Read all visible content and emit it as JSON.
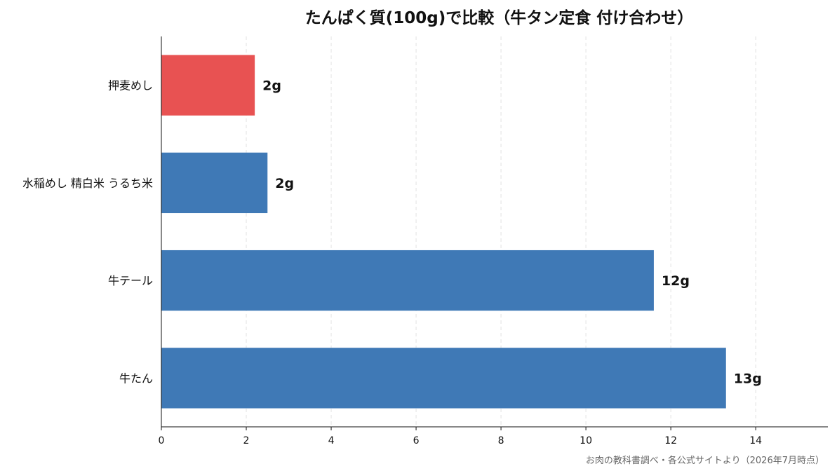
{
  "chart_data": {
    "type": "bar",
    "orientation": "horizontal",
    "title": "たんぱく質(100g)で比較（牛タン定食 付け合わせ）",
    "categories": [
      "押麦めし",
      "水稲めし 精白米 うるち米",
      "牛テール",
      "牛たん"
    ],
    "values": [
      2.2,
      2.5,
      11.6,
      13.3
    ],
    "value_labels": [
      "2g",
      "2g",
      "12g",
      "13g"
    ],
    "bar_colors": [
      "#e85252",
      "#3f79b6",
      "#3f79b6",
      "#3f79b6"
    ],
    "xlim": [
      0,
      15.7
    ],
    "xticks": [
      0,
      2,
      4,
      6,
      8,
      10,
      12,
      14
    ],
    "xlabel": "",
    "ylabel": "",
    "grid": "vertical dashed"
  },
  "source_note": "お肉の教科書調べ・各公式サイトより（2026年7月時点）"
}
